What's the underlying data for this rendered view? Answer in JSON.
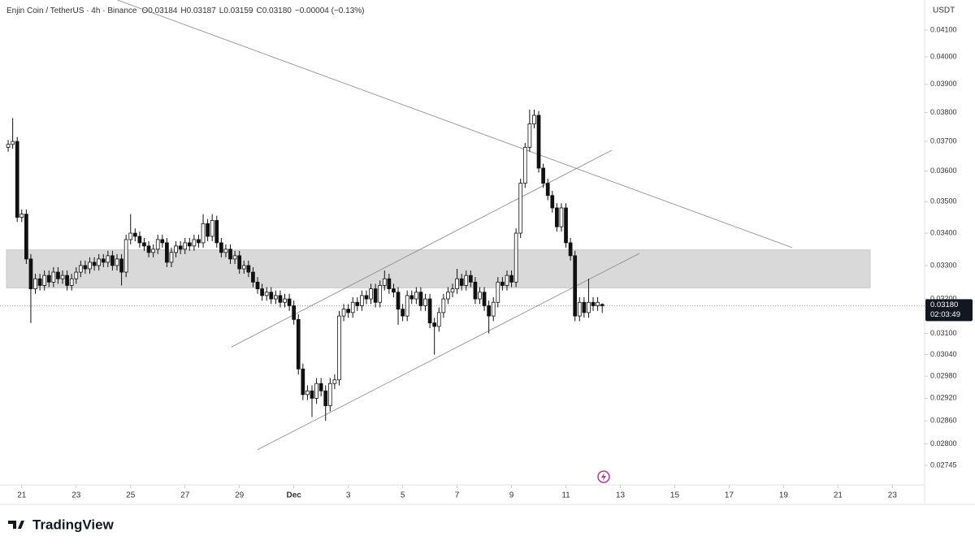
{
  "chart_data": {
    "type": "candlestick",
    "header": {
      "symbol": "Enjin Coin / TetherUS · 4h · Binance",
      "open": "O0.03184",
      "high": "H0.03187",
      "low": "L0.03159",
      "close": "C0.03180",
      "change": "−0.00004 (−0.13%)"
    },
    "currency": "USDT",
    "brand": "TradingView",
    "log_scale": true,
    "up_color": "#ffffff",
    "down_color": "#111111",
    "border_color": "#111111",
    "open": [
      0.0368,
      0.0369,
      0.037,
      0.0345,
      0.0346,
      0.0332,
      0.0323,
      0.0326,
      0.0324,
      0.0327,
      0.0325,
      0.0328,
      0.0326,
      0.0327,
      0.0324,
      0.0326,
      0.0328,
      0.033,
      0.0329,
      0.0331,
      0.033,
      0.0332,
      0.0331,
      0.0333,
      0.033,
      0.0332,
      0.0328,
      0.0338,
      0.034,
      0.0339,
      0.0337,
      0.0336,
      0.0334,
      0.0335,
      0.0338,
      0.0337,
      0.0331,
      0.0334,
      0.0336,
      0.0335,
      0.0337,
      0.0336,
      0.0338,
      0.0337,
      0.0343,
      0.0339,
      0.0344,
      0.0337,
      0.0334,
      0.0335,
      0.0332,
      0.0333,
      0.0329,
      0.033,
      0.0328,
      0.0325,
      0.0323,
      0.0321,
      0.0322,
      0.032,
      0.0321,
      0.0319,
      0.032,
      0.0318,
      0.0314,
      0.03,
      0.0293,
      0.0294,
      0.0292,
      0.0296,
      0.0294,
      0.029,
      0.0296,
      0.0297,
      0.0315,
      0.0317,
      0.0316,
      0.0319,
      0.0318,
      0.0321,
      0.032,
      0.0323,
      0.0319,
      0.0324,
      0.0326,
      0.0323,
      0.0322,
      0.0317,
      0.0315,
      0.0321,
      0.032,
      0.0322,
      0.0318,
      0.032,
      0.0313,
      0.0312,
      0.0316,
      0.032,
      0.0322,
      0.0323,
      0.0326,
      0.0324,
      0.0327,
      0.0325,
      0.032,
      0.0322,
      0.0318,
      0.0315,
      0.0319,
      0.0325,
      0.0324,
      0.0327,
      0.0325,
      0.034,
      0.0356,
      0.0368,
      0.0376,
      0.0379,
      0.0361,
      0.0356,
      0.0352,
      0.0348,
      0.0342,
      0.0348,
      0.0337,
      0.0333,
      0.0315,
      0.0319,
      0.0316,
      0.0319,
      0.0318,
      0.03184
    ],
    "high": [
      0.03705,
      0.0378,
      0.03715,
      0.03475,
      0.03475,
      0.03335,
      0.03275,
      0.03275,
      0.03285,
      0.03285,
      0.03295,
      0.03295,
      0.03285,
      0.03285,
      0.03275,
      0.03295,
      0.03315,
      0.03315,
      0.03325,
      0.03325,
      0.03335,
      0.03335,
      0.03345,
      0.03345,
      0.03335,
      0.03335,
      0.03395,
      0.0346,
      0.03415,
      0.03405,
      0.03385,
      0.03375,
      0.03365,
      0.03395,
      0.03395,
      0.03385,
      0.03355,
      0.03375,
      0.03375,
      0.03385,
      0.03385,
      0.03395,
      0.03395,
      0.0346,
      0.03445,
      0.0346,
      0.03455,
      0.03385,
      0.03365,
      0.03365,
      0.03345,
      0.03345,
      0.03315,
      0.03315,
      0.03295,
      0.03265,
      0.03245,
      0.03235,
      0.03235,
      0.03225,
      0.03225,
      0.03215,
      0.03215,
      0.03195,
      0.03155,
      0.03015,
      0.02955,
      0.02955,
      0.02975,
      0.02975,
      0.02955,
      0.02975,
      0.02985,
      0.03165,
      0.03185,
      0.03185,
      0.03205,
      0.03205,
      0.03225,
      0.03225,
      0.03245,
      0.03245,
      0.03255,
      0.03285,
      0.03275,
      0.03245,
      0.03235,
      0.03185,
      0.03225,
      0.03225,
      0.03235,
      0.03235,
      0.03215,
      0.03215,
      0.03145,
      0.03175,
      0.03215,
      0.03235,
      0.03245,
      0.0329,
      0.03275,
      0.03285,
      0.03285,
      0.03265,
      0.03235,
      0.03235,
      0.03195,
      0.03205,
      0.03265,
      0.03265,
      0.03285,
      0.03285,
      0.03415,
      0.03575,
      0.03695,
      0.0381,
      0.0381,
      0.03805,
      0.03625,
      0.03575,
      0.03535,
      0.03495,
      0.03495,
      0.03495,
      0.03385,
      0.03345,
      0.03205,
      0.03205,
      0.0326,
      0.03205,
      0.03205,
      0.03187
    ],
    "low": [
      0.03665,
      0.03675,
      0.03435,
      0.03435,
      0.03305,
      0.0313,
      0.03215,
      0.03225,
      0.03225,
      0.03235,
      0.03235,
      0.03245,
      0.03245,
      0.03225,
      0.03225,
      0.03245,
      0.03265,
      0.03275,
      0.03275,
      0.03285,
      0.03285,
      0.03295,
      0.03295,
      0.03285,
      0.03285,
      0.0324,
      0.03265,
      0.03365,
      0.03375,
      0.03355,
      0.03345,
      0.03325,
      0.03325,
      0.03335,
      0.03355,
      0.03295,
      0.03295,
      0.03325,
      0.03335,
      0.03335,
      0.03345,
      0.03345,
      0.03355,
      0.03355,
      0.03375,
      0.03375,
      0.03355,
      0.03325,
      0.03325,
      0.03305,
      0.03305,
      0.03275,
      0.03275,
      0.03265,
      0.03235,
      0.03215,
      0.03195,
      0.03195,
      0.03185,
      0.03185,
      0.03175,
      0.03175,
      0.03165,
      0.03125,
      0.02985,
      0.02915,
      0.02915,
      0.0287,
      0.02905,
      0.02925,
      0.0286,
      0.02885,
      0.02945,
      0.02955,
      0.03135,
      0.03145,
      0.03145,
      0.03165,
      0.03165,
      0.03185,
      0.03185,
      0.03175,
      0.03175,
      0.03225,
      0.03215,
      0.03205,
      0.03125,
      0.03135,
      0.03135,
      0.03185,
      0.03185,
      0.03165,
      0.03165,
      0.03115,
      0.0304,
      0.03105,
      0.03145,
      0.03185,
      0.03205,
      0.03215,
      0.03225,
      0.03225,
      0.03235,
      0.03185,
      0.03185,
      0.03165,
      0.031,
      0.03135,
      0.03175,
      0.03225,
      0.03225,
      0.03235,
      0.03235,
      0.03385,
      0.03545,
      0.03665,
      0.03745,
      0.03595,
      0.03545,
      0.03505,
      0.03465,
      0.03405,
      0.03405,
      0.03355,
      0.03315,
      0.03135,
      0.03135,
      0.03145,
      0.03145,
      0.03165,
      0.03165,
      0.03159
    ],
    "close": [
      0.0369,
      0.037,
      0.0345,
      0.0346,
      0.0332,
      0.0323,
      0.0326,
      0.0324,
      0.0327,
      0.0325,
      0.0328,
      0.0326,
      0.0327,
      0.0324,
      0.0326,
      0.0328,
      0.033,
      0.0329,
      0.0331,
      0.033,
      0.0332,
      0.0331,
      0.0333,
      0.033,
      0.0332,
      0.0328,
      0.0338,
      0.034,
      0.0339,
      0.0337,
      0.0336,
      0.0334,
      0.0335,
      0.0338,
      0.0337,
      0.0331,
      0.0334,
      0.0336,
      0.0335,
      0.0337,
      0.0336,
      0.0338,
      0.0337,
      0.0343,
      0.0339,
      0.0344,
      0.0337,
      0.0334,
      0.0335,
      0.0332,
      0.0333,
      0.0329,
      0.033,
      0.0328,
      0.0325,
      0.0323,
      0.0321,
      0.0322,
      0.032,
      0.0321,
      0.0319,
      0.032,
      0.0318,
      0.0314,
      0.03,
      0.0293,
      0.0294,
      0.0292,
      0.0296,
      0.0294,
      0.029,
      0.0296,
      0.0297,
      0.0315,
      0.0317,
      0.0316,
      0.0319,
      0.0318,
      0.0321,
      0.032,
      0.0323,
      0.0319,
      0.0324,
      0.0326,
      0.0323,
      0.0322,
      0.0317,
      0.0315,
      0.0321,
      0.032,
      0.0322,
      0.0318,
      0.032,
      0.0313,
      0.0312,
      0.0316,
      0.032,
      0.0322,
      0.0323,
      0.0326,
      0.0324,
      0.0327,
      0.0325,
      0.032,
      0.0322,
      0.0318,
      0.0315,
      0.0319,
      0.0325,
      0.0324,
      0.0327,
      0.0325,
      0.034,
      0.0356,
      0.0368,
      0.0376,
      0.0379,
      0.0361,
      0.0356,
      0.0352,
      0.0348,
      0.0342,
      0.0348,
      0.0337,
      0.0333,
      0.0315,
      0.0319,
      0.0316,
      0.0319,
      0.0318,
      0.0319,
      0.0318
    ],
    "xlim": [
      -1.8,
      202.1
    ],
    "xticks": [
      {
        "value": 3,
        "label": "21"
      },
      {
        "value": 15,
        "label": "23"
      },
      {
        "value": 27,
        "label": "25"
      },
      {
        "value": 39,
        "label": "27"
      },
      {
        "value": 51,
        "label": "29"
      },
      {
        "value": 63,
        "label": "Dec"
      },
      {
        "value": 75,
        "label": "3"
      },
      {
        "value": 87,
        "label": "5"
      },
      {
        "value": 99,
        "label": "7"
      },
      {
        "value": 111,
        "label": "9"
      },
      {
        "value": 123,
        "label": "11"
      },
      {
        "value": 135,
        "label": "13"
      },
      {
        "value": 147,
        "label": "15"
      },
      {
        "value": 159,
        "label": "17"
      },
      {
        "value": 171,
        "label": "19"
      },
      {
        "value": 183,
        "label": "21"
      },
      {
        "value": 195,
        "label": "23"
      }
    ],
    "ylim": [
      0.02696,
      0.04215
    ],
    "yticks": [
      {
        "value": 0.041,
        "label": "0.04100"
      },
      {
        "value": 0.04,
        "label": "0.04000"
      },
      {
        "value": 0.039,
        "label": "0.03900"
      },
      {
        "value": 0.038,
        "label": "0.03800"
      },
      {
        "value": 0.037,
        "label": "0.03700"
      },
      {
        "value": 0.036,
        "label": "0.03600"
      },
      {
        "value": 0.035,
        "label": "0.03500"
      },
      {
        "value": 0.034,
        "label": "0.03400"
      },
      {
        "value": 0.033,
        "label": "0.03300"
      },
      {
        "value": 0.032,
        "label": "0.03200"
      },
      {
        "value": 0.031,
        "label": "0.03100"
      },
      {
        "value": 0.0304,
        "label": "0.03040"
      },
      {
        "value": 0.0298,
        "label": "0.02980"
      },
      {
        "value": 0.0292,
        "label": "0.02920"
      },
      {
        "value": 0.0286,
        "label": "0.02860"
      },
      {
        "value": 0.028,
        "label": "0.02800"
      },
      {
        "value": 0.02745,
        "label": "0.02745"
      }
    ],
    "zone": [
      0.03233,
      0.03348
    ],
    "trend_lines": [
      [
        24.1,
        0.04215,
        172.9,
        0.03355
      ],
      [
        49.2,
        0.03061,
        133.1,
        0.0367
      ],
      [
        55.0,
        0.02785,
        139.2,
        0.03337
      ]
    ],
    "last_price": {
      "value": 0.0318,
      "label": "0.03180"
    },
    "countdown": "02:03:49"
  }
}
